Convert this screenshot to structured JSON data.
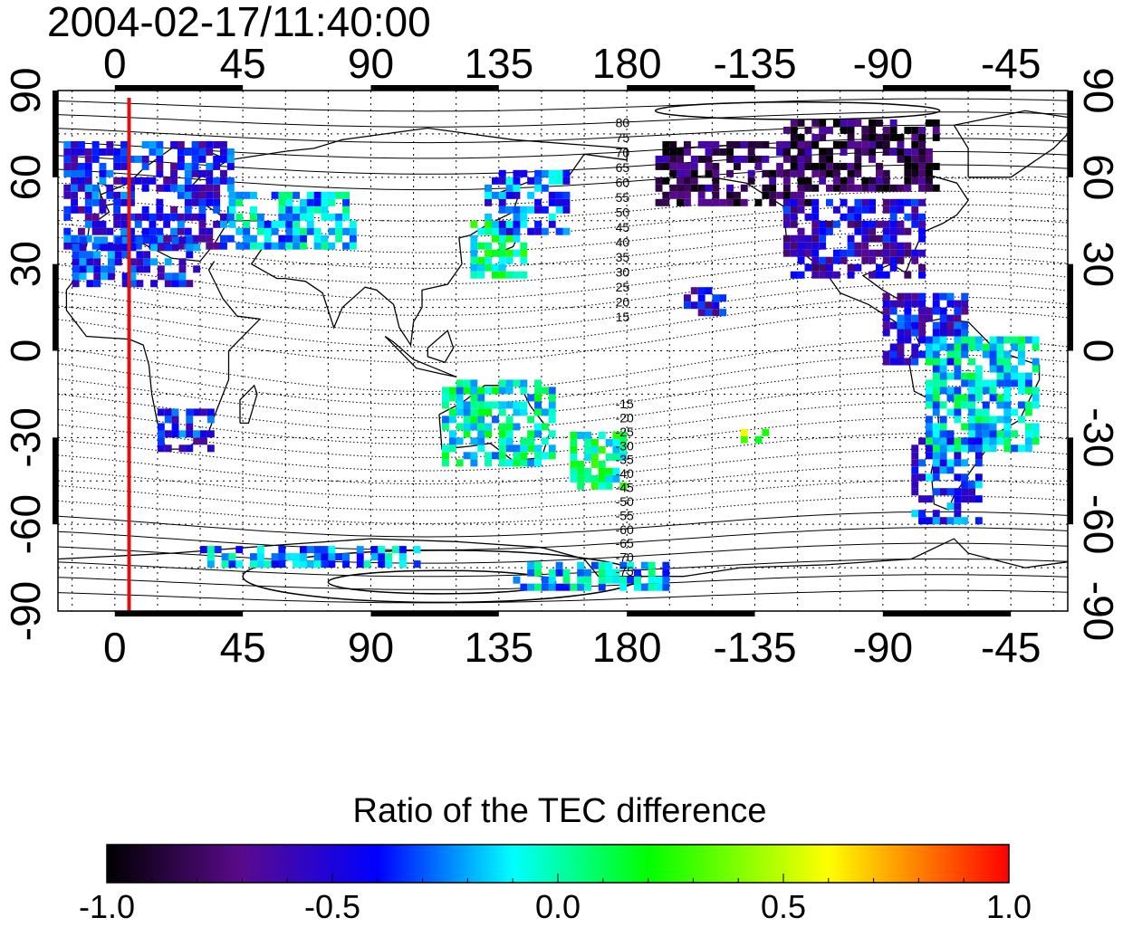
{
  "title": "2004-02-17/11:40:00",
  "axes": {
    "x_top_ticks": [
      "0",
      "45",
      "90",
      "135",
      "180",
      "-135",
      "-90",
      "-45"
    ],
    "x_bottom_ticks": [
      "0",
      "45",
      "90",
      "135",
      "180",
      "-135",
      "-90",
      "-45"
    ],
    "y_left_ticks": [
      "90",
      "60",
      "30",
      "0",
      "-30",
      "-60",
      "-90"
    ],
    "y_right_ticks": [
      "90",
      "60",
      "30",
      "0",
      "-30",
      "-60",
      "-90"
    ],
    "x_tick_values": [
      0,
      45,
      90,
      135,
      180,
      225,
      270,
      315
    ],
    "y_tick_values": [
      90,
      60,
      30,
      0,
      -30,
      -60,
      -90
    ],
    "lon_range": [
      -20,
      335
    ],
    "lat_range": [
      -90,
      90
    ]
  },
  "contour_labels_north": [
    "80",
    "75",
    "70",
    "65",
    "60",
    "55",
    "50",
    "45",
    "40",
    "35",
    "30",
    "25",
    "20",
    "15"
  ],
  "contour_labels_south": [
    "-15",
    "-20",
    "-25",
    "-30",
    "-35",
    "-40",
    "-45",
    "-50",
    "-55",
    "-60",
    "-65",
    "-70",
    "-75"
  ],
  "reference_meridian_lon": 5,
  "colorbar": {
    "title": "Ratio of the TEC difference",
    "tick_labels": [
      "-1.0",
      "-0.5",
      "0.0",
      "0.5",
      "1.0"
    ],
    "tick_values": [
      -1.0,
      -0.5,
      0.0,
      0.5,
      1.0
    ],
    "colors": [
      "#000000",
      "#5a0a8c",
      "#0000ff",
      "#00ffff",
      "#00ff00",
      "#ffff00",
      "#ff0000"
    ]
  },
  "chart_data": {
    "type": "heatmap",
    "title": "2004-02-17/11:40:00",
    "xlabel": "",
    "ylabel": "",
    "xlim": [
      -20,
      335
    ],
    "ylim": [
      -90,
      90
    ],
    "value_range": [
      -1.0,
      1.0
    ],
    "grid": true,
    "regions": [
      {
        "lon": [
          -18,
          40
        ],
        "lat": [
          35,
          72
        ],
        "value": -0.45
      },
      {
        "lon": [
          -15,
          30
        ],
        "lat": [
          22,
          38
        ],
        "value": -0.4
      },
      {
        "lon": [
          40,
          85
        ],
        "lat": [
          35,
          55
        ],
        "value": -0.15
      },
      {
        "lon": [
          125,
          145
        ],
        "lat": [
          25,
          45
        ],
        "value": 0.05
      },
      {
        "lon": [
          130,
          160
        ],
        "lat": [
          40,
          62
        ],
        "value": -0.3
      },
      {
        "lon": [
          190,
          245
        ],
        "lat": [
          50,
          72
        ],
        "value": -0.8
      },
      {
        "lon": [
          235,
          290
        ],
        "lat": [
          55,
          80
        ],
        "value": -0.85
      },
      {
        "lon": [
          235,
          285
        ],
        "lat": [
          25,
          52
        ],
        "value": -0.55
      },
      {
        "lon": [
          270,
          300
        ],
        "lat": [
          -5,
          20
        ],
        "value": -0.5
      },
      {
        "lon": [
          285,
          325
        ],
        "lat": [
          -35,
          5
        ],
        "value": -0.1
      },
      {
        "lon": [
          280,
          305
        ],
        "lat": [
          -60,
          -30
        ],
        "value": -0.35
      },
      {
        "lon": [
          15,
          35
        ],
        "lat": [
          -35,
          -22
        ],
        "value": -0.45
      },
      {
        "lon": [
          115,
          155
        ],
        "lat": [
          -40,
          -12
        ],
        "value": -0.05
      },
      {
        "lon": [
          160,
          180
        ],
        "lat": [
          -48,
          -28
        ],
        "value": 0.05
      },
      {
        "lon": [
          30,
          110
        ],
        "lat": [
          -75,
          -68
        ],
        "value": -0.2
      },
      {
        "lon": [
          140,
          195
        ],
        "lat": [
          -83,
          -75
        ],
        "value": -0.15
      },
      {
        "lon": [
          220,
          230
        ],
        "lat": [
          -32,
          -28
        ],
        "value": 0.35
      },
      {
        "lon": [
          200,
          215
        ],
        "lat": [
          12,
          20
        ],
        "value": -0.5
      }
    ]
  }
}
